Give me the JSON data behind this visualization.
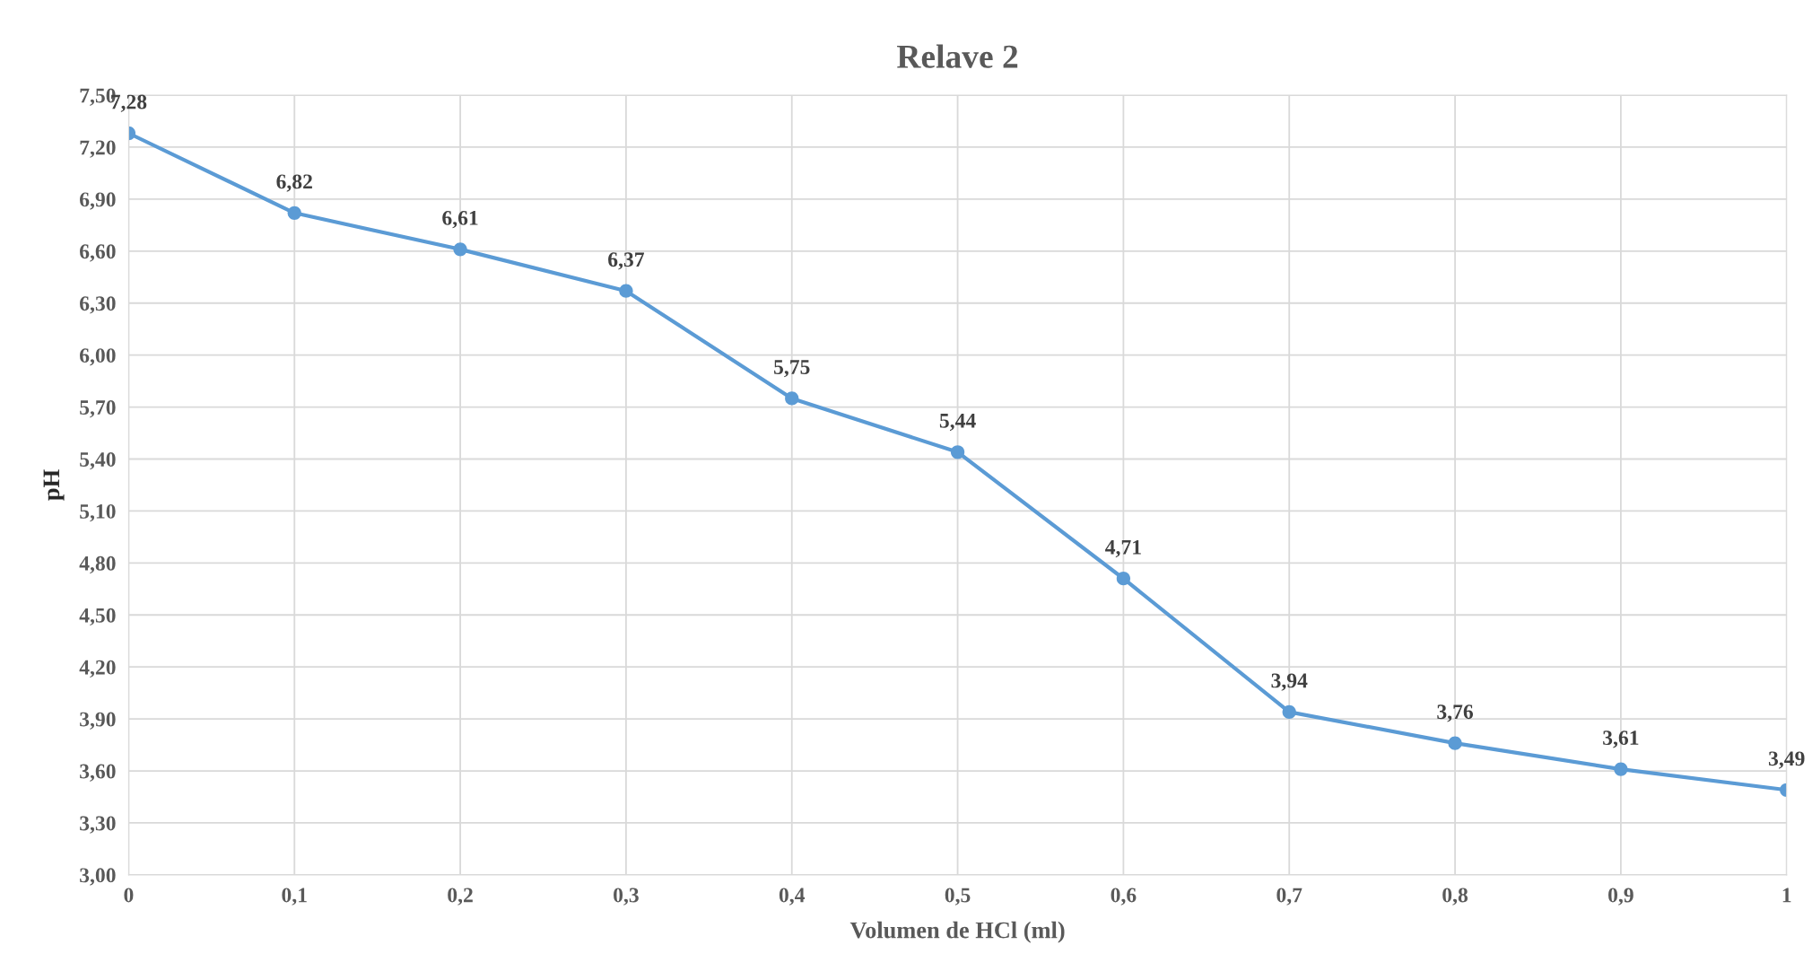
{
  "chart_data": {
    "type": "line",
    "title": "Relave 2",
    "xlabel": "Volumen de HCl (ml)",
    "ylabel": "pH",
    "x": [
      0,
      0.1,
      0.2,
      0.3,
      0.4,
      0.5,
      0.6,
      0.7,
      0.8,
      0.9,
      1
    ],
    "series": [
      {
        "color": "#5b9bd5",
        "values": [
          7.28,
          6.82,
          6.61,
          6.37,
          5.75,
          5.44,
          4.71,
          3.94,
          3.76,
          3.61,
          3.49
        ],
        "value_labels": [
          "7,28",
          "6,82",
          "6,61",
          "6,37",
          "5,75",
          "5,44",
          "4,71",
          "3,94",
          "3,76",
          "3,61",
          "3,49"
        ]
      }
    ],
    "xlim": [
      0,
      1
    ],
    "xticks": [
      0,
      {
        "value": 0.1,
        "label": "0,1"
      },
      {
        "value": 0.2,
        "label": "0,2"
      },
      {
        "value": 0.3,
        "label": "0,3"
      },
      {
        "value": 0.4,
        "label": "0,4"
      },
      {
        "value": 0.5,
        "label": "0,5"
      },
      {
        "value": 0.6,
        "label": "0,6"
      },
      {
        "value": 0.7,
        "label": "0,7"
      },
      {
        "value": 0.8,
        "label": "0,8"
      },
      {
        "value": 0.9,
        "label": "0,9"
      },
      1
    ],
    "ylim": [
      3,
      7.5
    ],
    "yticks": [
      {
        "value": 3,
        "label": "3,00"
      },
      {
        "value": 3.3,
        "label": "3,30"
      },
      {
        "value": 3.6,
        "label": "3,60"
      },
      {
        "value": 3.9,
        "label": "3,90"
      },
      {
        "value": 4.2,
        "label": "4,20"
      },
      {
        "value": 4.5,
        "label": "4,50"
      },
      {
        "value": 4.8,
        "label": "4,80"
      },
      {
        "value": 5.1,
        "label": "5,10"
      },
      {
        "value": 5.4,
        "label": "5,40"
      },
      {
        "value": 5.7,
        "label": "5,70"
      },
      {
        "value": 6.0,
        "label": "6,00"
      },
      {
        "value": 6.3,
        "label": "6,30"
      },
      {
        "value": 6.6,
        "label": "6,60"
      },
      {
        "value": 6.9,
        "label": "6,90"
      },
      {
        "value": 7.2,
        "label": "7,20"
      },
      {
        "value": 7.5,
        "label": "7,50"
      }
    ],
    "grid": true,
    "marker": "circle",
    "line_style": "solid",
    "legend": false
  }
}
